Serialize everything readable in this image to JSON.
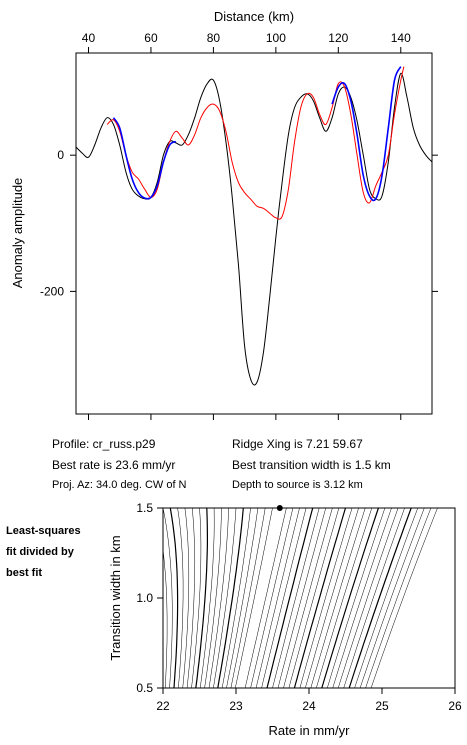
{
  "chart_data": [
    {
      "type": "line",
      "xlabel": "Distance (km)",
      "ylabel": "Anomaly amplitude",
      "xlim": [
        36,
        150
      ],
      "ylim": [
        -380,
        150
      ],
      "x_ticks": [
        40,
        60,
        80,
        100,
        120,
        140
      ],
      "y_ticks": [
        0,
        -200
      ],
      "grid": false,
      "series": [
        {
          "color": "#000000",
          "x": [
            36,
            38,
            40,
            42,
            44,
            46,
            48,
            50,
            52,
            54,
            56,
            58,
            60,
            62,
            64,
            66,
            68,
            70,
            72,
            74,
            76,
            78,
            80,
            82,
            84,
            86,
            88,
            90,
            92,
            94,
            96,
            98,
            100,
            102,
            104,
            106,
            108,
            110,
            112,
            114,
            116,
            118,
            120,
            122,
            124,
            126,
            128,
            130,
            132,
            134,
            136,
            138,
            140,
            142,
            144,
            146,
            148,
            150
          ],
          "y": [
            12,
            3,
            -3,
            15,
            40,
            55,
            45,
            15,
            -25,
            -50,
            -60,
            -64,
            -62,
            -40,
            0,
            20,
            18,
            15,
            30,
            55,
            85,
            105,
            110,
            80,
            20,
            -60,
            -160,
            -280,
            -330,
            -333,
            -290,
            -210,
            -120,
            -40,
            30,
            70,
            85,
            90,
            80,
            55,
            35,
            55,
            90,
            100,
            85,
            50,
            0,
            -50,
            -64,
            -60,
            -10,
            70,
            120,
            85,
            40,
            15,
            0,
            -10
          ]
        },
        {
          "color": "#ff0000",
          "x": [
            46,
            48,
            50,
            52,
            54,
            56,
            58,
            60,
            62,
            64,
            66,
            68,
            70,
            72,
            74,
            76,
            78,
            80,
            82,
            84,
            86,
            88,
            90,
            92,
            94,
            96,
            98,
            100,
            102,
            104,
            106,
            108,
            110,
            112,
            114,
            116,
            118,
            120,
            122,
            124,
            126,
            128,
            130,
            132,
            134,
            136,
            138,
            140,
            141
          ],
          "y": [
            45,
            52,
            35,
            0,
            -25,
            -35,
            -50,
            -62,
            -50,
            -10,
            20,
            35,
            25,
            15,
            30,
            55,
            70,
            75,
            65,
            35,
            -10,
            -40,
            -55,
            -65,
            -75,
            -78,
            -85,
            -92,
            -90,
            -50,
            20,
            70,
            90,
            85,
            60,
            45,
            70,
            105,
            100,
            60,
            0,
            -55,
            -70,
            -45,
            -25,
            0,
            60,
            110,
            130
          ]
        },
        {
          "color": "#0000ff",
          "x": [
            48,
            50,
            52,
            54,
            56,
            58,
            60,
            62,
            64,
            66,
            68
          ],
          "y": [
            55,
            40,
            0,
            -35,
            -55,
            -63,
            -62,
            -45,
            -10,
            15,
            20
          ]
        },
        {
          "color": "#0000ff",
          "x": [
            118,
            120,
            122,
            124,
            126,
            128,
            130,
            132,
            134,
            136,
            138,
            140
          ],
          "y": [
            75,
            100,
            105,
            80,
            30,
            -30,
            -60,
            -64,
            -30,
            40,
            110,
            130
          ]
        }
      ]
    },
    {
      "type": "contour",
      "xlabel": "Rate in mm/yr",
      "ylabel": "Transition width in km",
      "xlim": [
        22,
        26
      ],
      "ylim": [
        0.5,
        1.5
      ],
      "x_ticks": [
        22,
        23,
        24,
        25,
        26
      ],
      "y_ticks": [
        0.5,
        1.0,
        1.5
      ],
      "best_fit": {
        "rate": 23.6,
        "width": 1.5
      }
    }
  ],
  "info": {
    "profile": "Profile: cr_russ.p29",
    "best_rate": "Best rate is 23.6 mm/yr",
    "proj_az": "Proj. Az: 34.0 deg. CW of N",
    "ridge_xing": "Ridge Xing is 7.21 59.67",
    "best_width": "Best transition width is 1.5 km",
    "depth": "Depth to source is   3.12 km"
  },
  "side_note": [
    "Least-squares",
    "fit divided by",
    "best fit"
  ]
}
